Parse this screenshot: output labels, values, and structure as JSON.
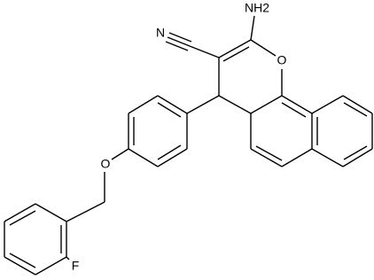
{
  "atoms": [
    {
      "label": "NH2"
    },
    {
      "label": "N"
    },
    {
      "label": "O"
    },
    {
      "label": "O"
    },
    {
      "label": "F"
    }
  ]
}
